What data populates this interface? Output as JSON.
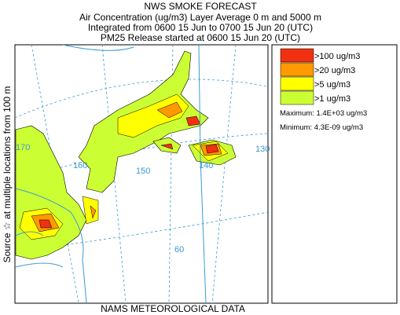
{
  "header": {
    "title": "NWS SMOKE FORECAST",
    "lines": [
      "Air Concentration (ug/m3) Layer Average    0 m and  5000 m",
      "Integrated from 0600 15 Jun to 0700 15 Jun 20 (UTC)",
      "PM25 Release started at 0600 15 Jun 20 (UTC)"
    ]
  },
  "legend": {
    "entries": [
      {
        "label": ">100 ug/m3",
        "color": "#f03010"
      },
      {
        "label": ">20 ug/m3",
        "color": "#ff9900"
      },
      {
        "label": ">5 ug/m3",
        "color": "#ffff00"
      },
      {
        "label": ">1 ug/m3",
        "color": "#ccff33"
      }
    ],
    "maximum": "Maximum: 1.4E+03 ug/m3",
    "minimum": "Minimum: 4.3E-09 ug/m3"
  },
  "map": {
    "side_label": "Source ☆ at multiple locations from  100 m",
    "footer": "NAMS METEOROLOGICAL DATA",
    "graticule_labels": [
      "170",
      "160",
      "150",
      "140",
      "130",
      "60"
    ]
  }
}
